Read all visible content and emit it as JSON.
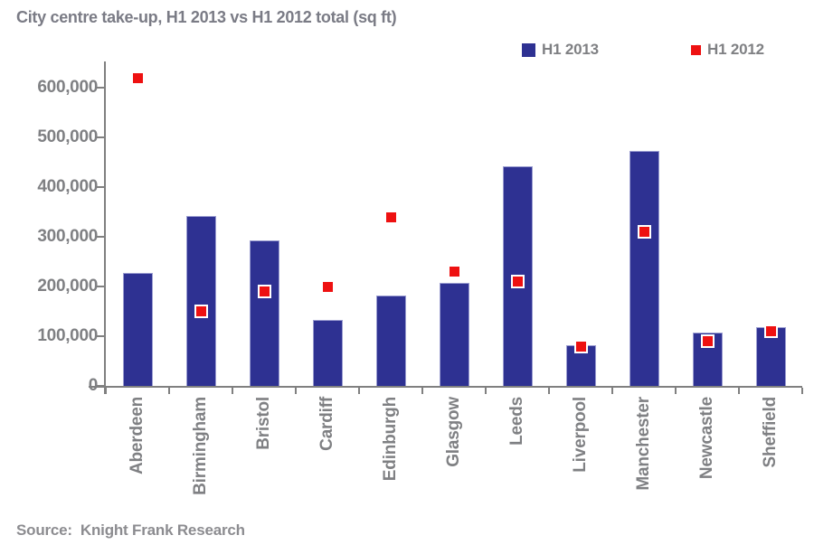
{
  "title": "City centre take-up, H1 2013 vs H1 2012 total (sq ft)",
  "legend": {
    "items": [
      {
        "label": "H1 2013",
        "color": "#2e3192"
      },
      {
        "label": "H1 2012",
        "color": "#ee1111"
      }
    ]
  },
  "source": {
    "label": "Source:",
    "text": "Knight Frank Research"
  },
  "chart_data": {
    "type": "bar",
    "title": "City centre take-up, H1 2013 vs H1 2012 total (sq ft)",
    "unit": "sq ft",
    "categories": [
      "Aberdeen",
      "Birmingham",
      "Bristol",
      "Cardiff",
      "Edinburgh",
      "Glasgow",
      "Leeds",
      "Liverpool",
      "Manchester",
      "Newcastle",
      "Sheffield"
    ],
    "series": [
      {
        "name": "H1 2013",
        "type": "bar",
        "color": "#2e3192",
        "values": [
          225000,
          340000,
          290000,
          130000,
          180000,
          205000,
          440000,
          80000,
          470000,
          105000,
          117000
        ]
      },
      {
        "name": "H1 2012",
        "type": "scatter",
        "marker": "square",
        "color": "#ee1111",
        "marker_border": "#ffffff",
        "values": [
          620000,
          150000,
          190000,
          200000,
          340000,
          230000,
          210000,
          80000,
          310000,
          90000,
          110000
        ]
      }
    ],
    "xlabel": "",
    "ylabel": "",
    "ylim": [
      0,
      600000
    ],
    "ytick_interval": 100000,
    "ytick_labels": [
      "0",
      "100,000",
      "200,000",
      "300,000",
      "400,000",
      "500,000",
      "600,000"
    ],
    "grid": false,
    "legend_position": "top-right"
  },
  "colors": {
    "bar": "#2e3192",
    "bar_edge": "#9a9cd0",
    "marker": "#ee1111",
    "marker_border": "#ffffff",
    "axis": "#808080",
    "tick_label": "#7f8083",
    "title": "#7a7b85",
    "source": "#8c8c90"
  }
}
